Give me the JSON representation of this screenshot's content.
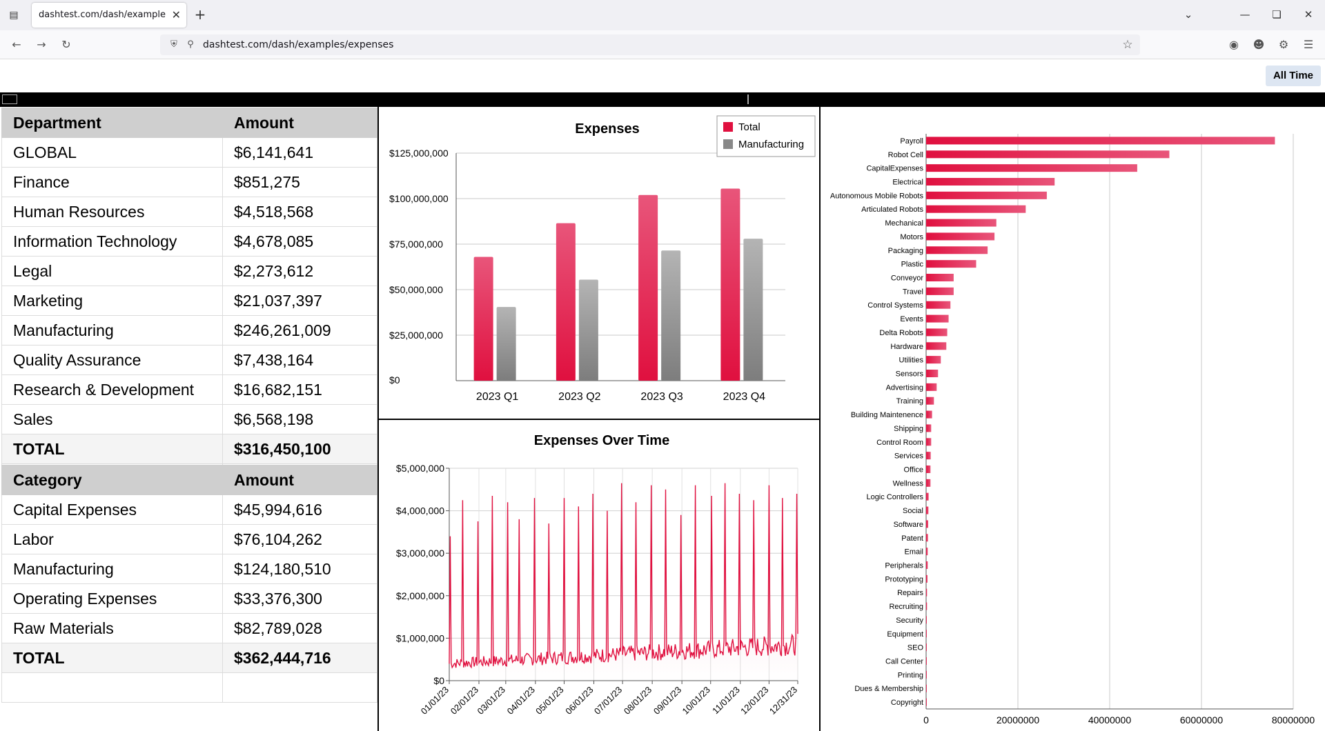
{
  "browser": {
    "tab_title": "dashtest.com/dash/examples/expenses",
    "url": "dashtest.com/dash/examples/expenses"
  },
  "page": {
    "range_button": "All Time"
  },
  "department_table": {
    "headers": [
      "Department",
      "Amount"
    ],
    "rows": [
      [
        "GLOBAL",
        "$6,141,641"
      ],
      [
        "Finance",
        "$851,275"
      ],
      [
        "Human Resources",
        "$4,518,568"
      ],
      [
        "Information Technology",
        "$4,678,085"
      ],
      [
        "Legal",
        "$2,273,612"
      ],
      [
        "Marketing",
        "$21,037,397"
      ],
      [
        "Manufacturing",
        "$246,261,009"
      ],
      [
        "Quality Assurance",
        "$7,438,164"
      ],
      [
        "Research & Development",
        "$16,682,151"
      ],
      [
        "Sales",
        "$6,568,198"
      ]
    ],
    "total": [
      "TOTAL",
      "$316,450,100"
    ]
  },
  "category_table": {
    "headers": [
      "Category",
      "Amount"
    ],
    "rows": [
      [
        "Capital Expenses",
        "$45,994,616"
      ],
      [
        "Labor",
        "$76,104,262"
      ],
      [
        "Manufacturing",
        "$124,180,510"
      ],
      [
        "Operating Expenses",
        "$33,376,300"
      ],
      [
        "Raw Materials",
        "$82,789,028"
      ]
    ],
    "total": [
      "TOTAL",
      "$362,444,716"
    ]
  },
  "colors": {
    "total": "#e0103f",
    "manufacturing": "#888888"
  },
  "chart_data": [
    {
      "type": "bar",
      "title": "Expenses",
      "categories": [
        "2023 Q1",
        "2023 Q2",
        "2023 Q3",
        "2023 Q4"
      ],
      "series": [
        {
          "name": "Total",
          "values": [
            68000000,
            86500000,
            102000000,
            105500000
          ]
        },
        {
          "name": "Manufacturing",
          "values": [
            40500000,
            55500000,
            71500000,
            78000000
          ]
        }
      ],
      "ylim": [
        0,
        125000000
      ],
      "yticks": [
        "$0",
        "$25,000,000",
        "$50,000,000",
        "$75,000,000",
        "$100,000,000",
        "$125,000,000"
      ],
      "legend": "top-right",
      "grid": true
    },
    {
      "type": "area",
      "title": "Expenses Over Time",
      "x_start": "2023-01-01",
      "x_end": "2023-12-31",
      "xticks": [
        "01/01/23",
        "02/01/23",
        "03/01/23",
        "04/01/23",
        "05/01/23",
        "06/01/23",
        "07/01/23",
        "08/01/23",
        "09/01/23",
        "10/01/23",
        "11/01/23",
        "12/01/23",
        "12/31/23"
      ],
      "yticks": [
        "$0",
        "$1,000,000",
        "$2,000,000",
        "$3,000,000",
        "$4,000,000",
        "$5,000,000"
      ],
      "ylim": [
        0,
        5000000
      ],
      "baseline_start": 400000,
      "baseline_end": 850000,
      "spikes": [
        {
          "date": "2023-01-02",
          "value": 3400000
        },
        {
          "date": "2023-01-15",
          "value": 4250000
        },
        {
          "date": "2023-01-31",
          "value": 3750000
        },
        {
          "date": "2023-02-15",
          "value": 4350000
        },
        {
          "date": "2023-03-03",
          "value": 4200000
        },
        {
          "date": "2023-03-15",
          "value": 3800000
        },
        {
          "date": "2023-03-31",
          "value": 4300000
        },
        {
          "date": "2023-04-15",
          "value": 3700000
        },
        {
          "date": "2023-05-01",
          "value": 4300000
        },
        {
          "date": "2023-05-16",
          "value": 4100000
        },
        {
          "date": "2023-05-31",
          "value": 4400000
        },
        {
          "date": "2023-06-15",
          "value": 4000000
        },
        {
          "date": "2023-06-30",
          "value": 4650000
        },
        {
          "date": "2023-07-15",
          "value": 4200000
        },
        {
          "date": "2023-07-31",
          "value": 4600000
        },
        {
          "date": "2023-08-15",
          "value": 4500000
        },
        {
          "date": "2023-08-31",
          "value": 3900000
        },
        {
          "date": "2023-09-15",
          "value": 4600000
        },
        {
          "date": "2023-10-02",
          "value": 4350000
        },
        {
          "date": "2023-10-16",
          "value": 4650000
        },
        {
          "date": "2023-10-31",
          "value": 4400000
        },
        {
          "date": "2023-11-15",
          "value": 4250000
        },
        {
          "date": "2023-12-01",
          "value": 4600000
        },
        {
          "date": "2023-12-15",
          "value": 4300000
        },
        {
          "date": "2023-12-30",
          "value": 4400000
        }
      ],
      "grid": true
    },
    {
      "type": "bar",
      "orientation": "horizontal",
      "categories": [
        "Payroll",
        "Robot Cell",
        "CapitalExpenses",
        "Electrical",
        "Autonomous Mobile Robots",
        "Articulated Robots",
        "Mechanical",
        "Motors",
        "Packaging",
        "Plastic",
        "Conveyor",
        "Travel",
        "Control Systems",
        "Events",
        "Delta Robots",
        "Hardware",
        "Utilities",
        "Sensors",
        "Advertising",
        "Training",
        "Building Maintenence",
        "Shipping",
        "Control Room",
        "Services",
        "Office",
        "Wellness",
        "Logic Controllers",
        "Social",
        "Software",
        "Patent",
        "Email",
        "Peripherals",
        "Prototyping",
        "Repairs",
        "Recruiting",
        "Security",
        "Equipment",
        "SEO",
        "Call Center",
        "Printing",
        "Dues & Membership",
        "Copyright"
      ],
      "values": [
        76000000,
        53000000,
        46000000,
        28000000,
        26300000,
        21700000,
        15300000,
        14900000,
        13400000,
        10900000,
        6000000,
        6000000,
        5300000,
        4900000,
        4600000,
        4400000,
        3200000,
        2600000,
        2300000,
        1700000,
        1300000,
        1100000,
        1100000,
        1000000,
        950000,
        950000,
        550000,
        500000,
        450000,
        400000,
        350000,
        350000,
        300000,
        200000,
        200000,
        150000,
        150000,
        120000,
        100000,
        80000,
        60000,
        40000
      ],
      "xlim": [
        0,
        80000000
      ],
      "xticks": [
        "0",
        "20000000",
        "40000000",
        "60000000",
        "80000000"
      ],
      "grid": true
    }
  ]
}
